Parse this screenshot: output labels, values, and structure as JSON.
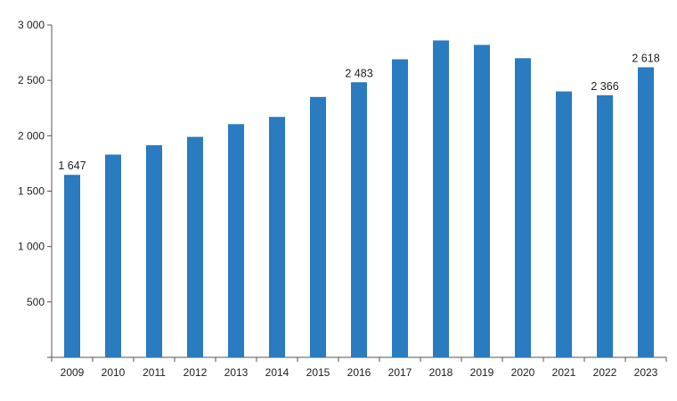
{
  "chart_data": {
    "type": "bar",
    "categories": [
      "2009",
      "2010",
      "2011",
      "2012",
      "2013",
      "2014",
      "2015",
      "2016",
      "2017",
      "2018",
      "2019",
      "2020",
      "2021",
      "2022",
      "2023"
    ],
    "values": [
      1647,
      1830,
      1915,
      1990,
      2105,
      2170,
      2350,
      2483,
      2690,
      2860,
      2820,
      2700,
      2400,
      2366,
      2618
    ],
    "data_labels": {
      "2009": "1 647",
      "2016": "2 483",
      "2022": "2 366",
      "2023": "2 618"
    },
    "y_ticks": [
      {
        "value": 500,
        "label": "500"
      },
      {
        "value": 1000,
        "label": "1 000"
      },
      {
        "value": 1500,
        "label": "1 500"
      },
      {
        "value": 2000,
        "label": "2 000"
      },
      {
        "value": 2500,
        "label": "2 500"
      },
      {
        "value": 3000,
        "label": "3 000"
      }
    ],
    "ylim": [
      0,
      3000
    ],
    "title": "",
    "xlabel": "",
    "ylabel": "",
    "grid": false,
    "legend": "none",
    "bar_color": "#2a7bbf"
  }
}
